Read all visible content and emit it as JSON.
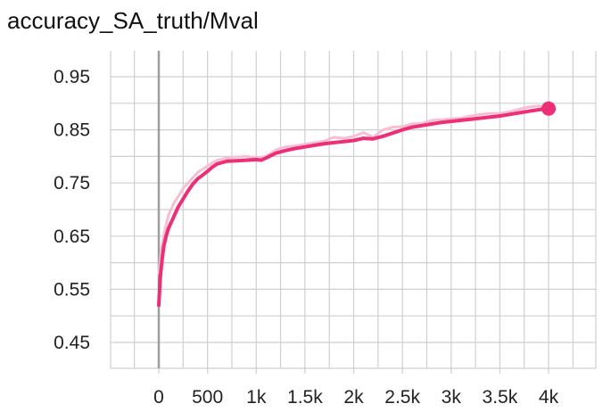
{
  "chart_data": {
    "type": "line",
    "title": "accuracy_SA_truth/Mval",
    "xlim": [
      -500,
      4500
    ],
    "ylim": [
      0.4,
      0.99
    ],
    "x_ticks": [
      0,
      500,
      1000,
      1500,
      2000,
      2500,
      3000,
      3500,
      4000
    ],
    "x_tick_labels": [
      "0",
      "500",
      "1k",
      "1.5k",
      "2k",
      "2.5k",
      "3k",
      "3.5k",
      "4k"
    ],
    "y_ticks": [
      0.45,
      0.55,
      0.65,
      0.75,
      0.85,
      0.95
    ],
    "y_tick_labels": [
      "0.45",
      "0.55",
      "0.65",
      "0.75",
      "0.85",
      "0.95"
    ],
    "grid": true,
    "colors": {
      "smoothed": "#ec2f77",
      "raw": "#f6bfd3",
      "grid": "#cfcfcf",
      "zero_line": "#9e9e9e"
    },
    "series": [
      {
        "role": "raw",
        "x": [
          0,
          30,
          60,
          100,
          150,
          200,
          250,
          300,
          350,
          400,
          450,
          500,
          550,
          600,
          700,
          800,
          900,
          1000,
          1100,
          1200,
          1300,
          1400,
          1500,
          1600,
          1700,
          1800,
          1900,
          2000,
          2100,
          2200,
          2300,
          2400,
          2500,
          2600,
          2700,
          2800,
          2900,
          3000,
          3100,
          3200,
          3300,
          3400,
          3500,
          3600,
          3700,
          3800,
          3900,
          4000
        ],
        "y": [
          0.58,
          0.63,
          0.66,
          0.69,
          0.71,
          0.725,
          0.74,
          0.75,
          0.76,
          0.77,
          0.776,
          0.782,
          0.788,
          0.793,
          0.797,
          0.799,
          0.8,
          0.797,
          0.8,
          0.812,
          0.818,
          0.82,
          0.823,
          0.826,
          0.829,
          0.836,
          0.834,
          0.838,
          0.845,
          0.836,
          0.85,
          0.855,
          0.856,
          0.861,
          0.862,
          0.868,
          0.869,
          0.871,
          0.872,
          0.876,
          0.879,
          0.881,
          0.881,
          0.884,
          0.889,
          0.893,
          0.895,
          0.893
        ]
      },
      {
        "role": "smoothed",
        "x": [
          0,
          15,
          30,
          50,
          75,
          100,
          150,
          200,
          250,
          300,
          350,
          400,
          450,
          500,
          550,
          600,
          700,
          800,
          900,
          1000,
          1050,
          1100,
          1200,
          1300,
          1400,
          1500,
          1600,
          1700,
          1800,
          1900,
          2000,
          2100,
          2200,
          2300,
          2400,
          2500,
          2600,
          2700,
          2800,
          2900,
          3000,
          3100,
          3200,
          3300,
          3400,
          3500,
          3600,
          3700,
          3800,
          3900,
          4000
        ],
        "y": [
          0.52,
          0.57,
          0.6,
          0.63,
          0.65,
          0.665,
          0.685,
          0.705,
          0.72,
          0.735,
          0.748,
          0.758,
          0.765,
          0.772,
          0.78,
          0.786,
          0.791,
          0.792,
          0.793,
          0.794,
          0.793,
          0.797,
          0.806,
          0.811,
          0.815,
          0.818,
          0.821,
          0.824,
          0.826,
          0.828,
          0.83,
          0.834,
          0.833,
          0.838,
          0.844,
          0.85,
          0.855,
          0.858,
          0.861,
          0.864,
          0.866,
          0.868,
          0.87,
          0.872,
          0.874,
          0.876,
          0.879,
          0.882,
          0.885,
          0.888,
          0.89
        ]
      }
    ],
    "end_marker": {
      "x": 4000,
      "y": 0.89
    }
  }
}
